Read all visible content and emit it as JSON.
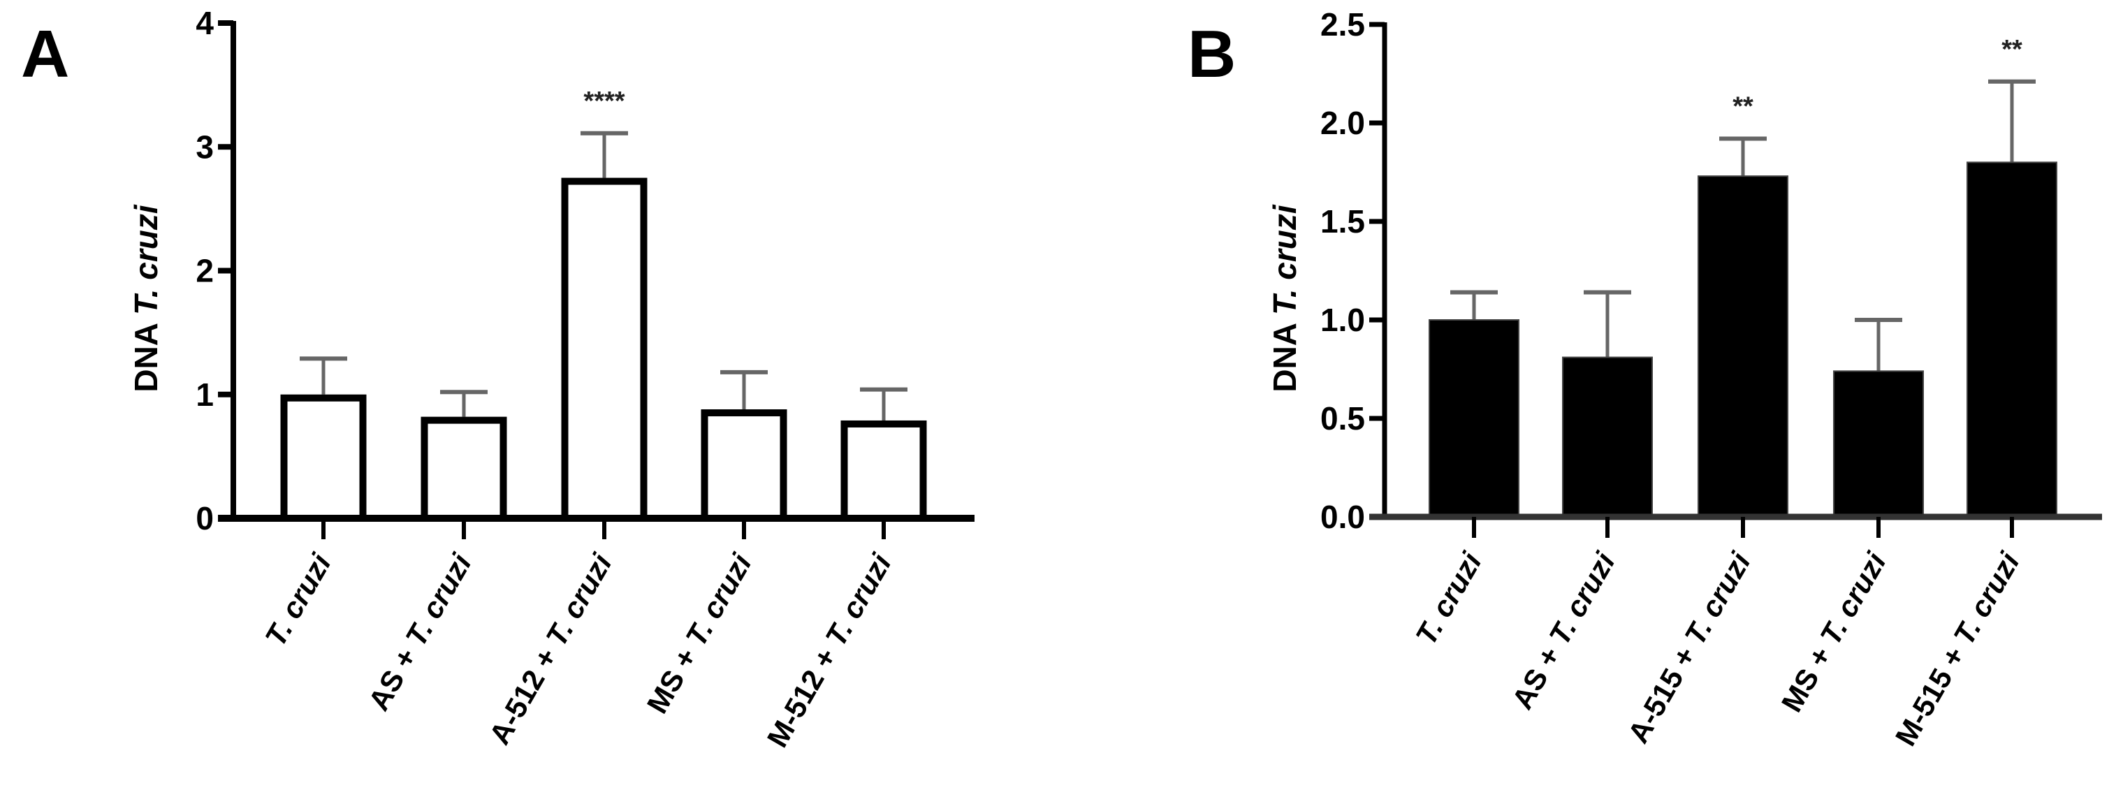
{
  "figure": {
    "panels": [
      {
        "letter": "A",
        "ylabel_prefix": "DNA ",
        "ylabel_italic": "T. cruzi",
        "fill": "#ffffff",
        "stroke": "#000000"
      },
      {
        "letter": "B",
        "ylabel_prefix": "DNA ",
        "ylabel_italic": "T. cruzi",
        "fill": "#000000",
        "stroke": "#000000"
      }
    ]
  },
  "chart_data": [
    {
      "type": "bar",
      "title": "A",
      "xlabel": "",
      "ylabel": "DNA T. cruzi",
      "ylim": [
        0,
        4
      ],
      "yticks": [
        "0",
        "1",
        "2",
        "3",
        "4"
      ],
      "grid": false,
      "legend": null,
      "categories": [
        {
          "prefix": "",
          "italic": "T. cruzi"
        },
        {
          "prefix": "AS + ",
          "italic": "T. cruzi"
        },
        {
          "prefix": "A-512 + ",
          "italic": "T. cruzi"
        },
        {
          "prefix": "MS + ",
          "italic": "T. cruzi"
        },
        {
          "prefix": "M-512 + ",
          "italic": "T. cruzi"
        }
      ],
      "category_text": [
        "T. cruzi",
        "AS + T. cruzi",
        "A-512 + T. cruzi",
        "MS + T. cruzi",
        "M-512 + T. cruzi"
      ],
      "values": [
        1.0,
        0.82,
        2.75,
        0.88,
        0.79
      ],
      "error_upper": [
        1.29,
        1.02,
        3.11,
        1.18,
        1.04
      ],
      "annotations": [
        "",
        "",
        "****",
        "",
        ""
      ],
      "bar_style": "white fill, black outline"
    },
    {
      "type": "bar",
      "title": "B",
      "xlabel": "",
      "ylabel": "DNA T. cruzi",
      "ylim": [
        0,
        2.5
      ],
      "yticks": [
        "0.0",
        "0.5",
        "1.0",
        "1.5",
        "2.0",
        "2.5"
      ],
      "grid": false,
      "legend": null,
      "categories": [
        {
          "prefix": "",
          "italic": "T. cruzi"
        },
        {
          "prefix": "AS + ",
          "italic": "T. cruzi"
        },
        {
          "prefix": "A-515 + ",
          "italic": "T. cruzi"
        },
        {
          "prefix": "MS + ",
          "italic": "T. cruzi"
        },
        {
          "prefix": "M-515 + ",
          "italic": "T. cruzi"
        }
      ],
      "category_text": [
        "T. cruzi",
        "AS + T. cruzi",
        "A-515 + T. cruzi",
        "MS + T. cruzi",
        "M-515 + T. cruzi"
      ],
      "values": [
        1.0,
        0.81,
        1.73,
        0.74,
        1.8
      ],
      "error_upper": [
        1.14,
        1.14,
        1.92,
        1.0,
        2.21
      ],
      "annotations": [
        "",
        "",
        "**",
        "",
        "**"
      ],
      "bar_style": "black fill"
    }
  ]
}
